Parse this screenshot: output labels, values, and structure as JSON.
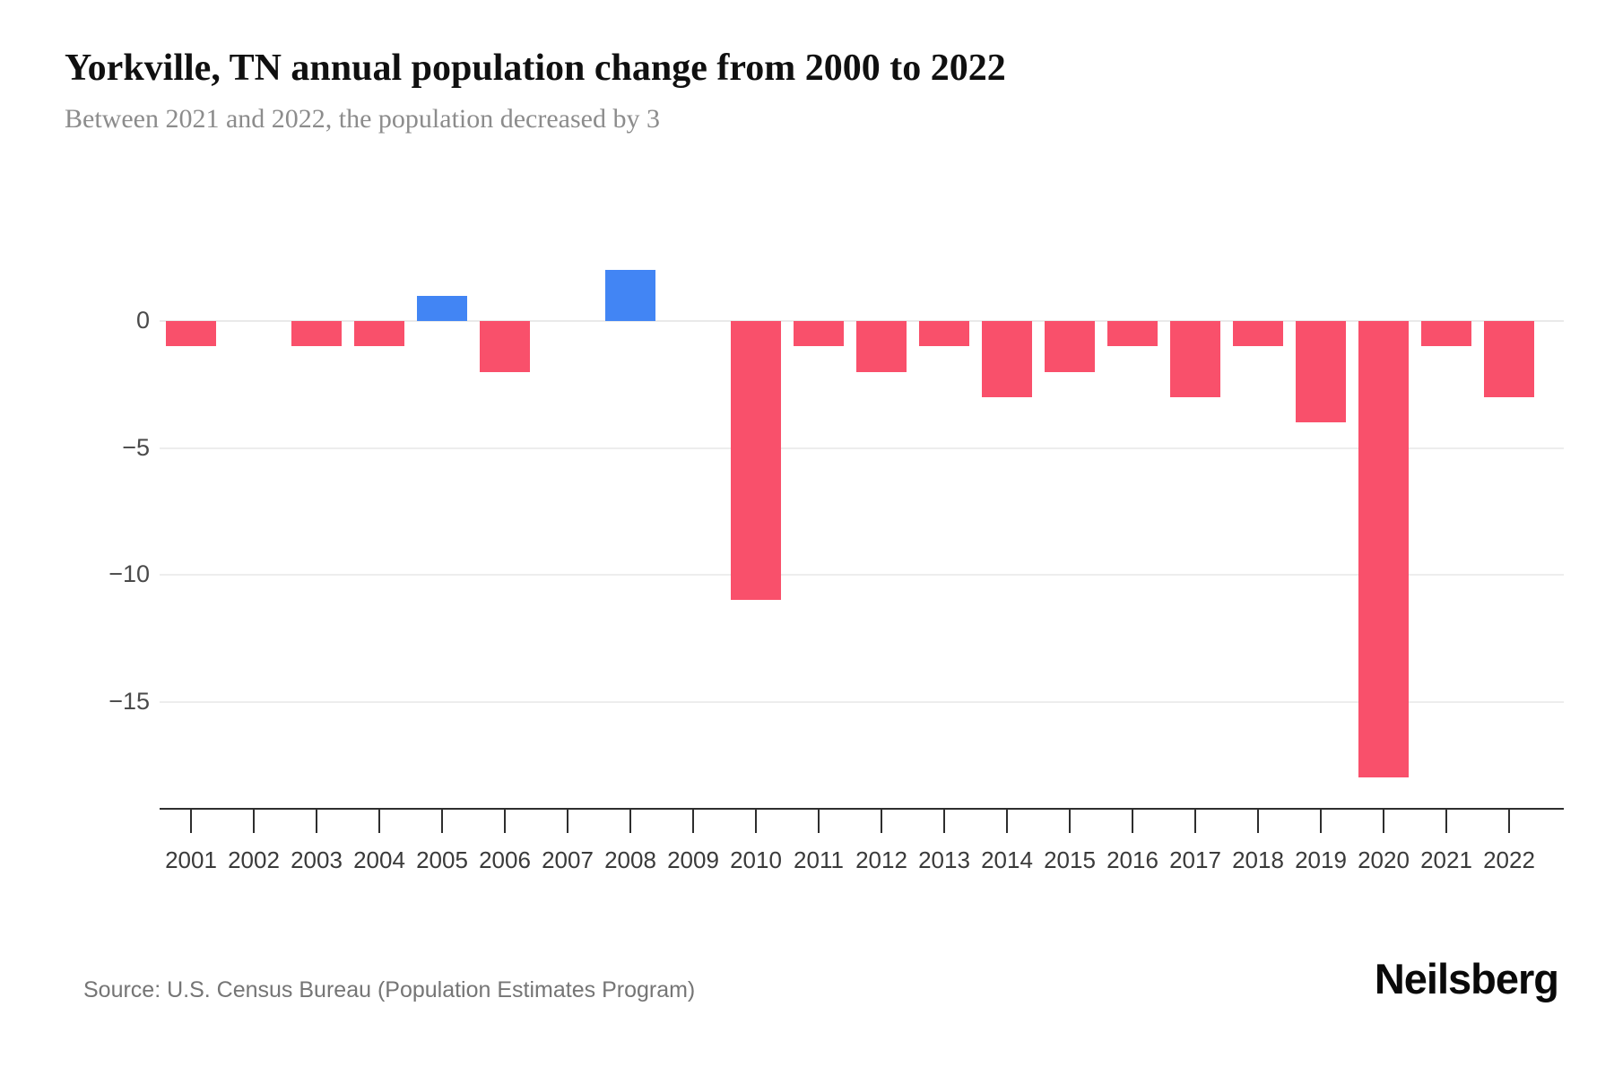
{
  "page": {
    "title": "Yorkville, TN annual population change from 2000 to 2022",
    "subtitle": "Between 2021 and 2022, the population decreased by 3",
    "source": "Source: U.S. Census Bureau (Population Estimates Program)",
    "brand": "Neilsberg"
  },
  "chart_data": {
    "type": "bar",
    "title": "Yorkville, TN annual population change from 2000 to 2022",
    "subtitle": "Between 2021 and 2022, the population decreased by 3",
    "xlabel": "",
    "ylabel": "",
    "categories": [
      "2001",
      "2002",
      "2003",
      "2004",
      "2005",
      "2006",
      "2007",
      "2008",
      "2009",
      "2010",
      "2011",
      "2012",
      "2013",
      "2014",
      "2015",
      "2016",
      "2017",
      "2018",
      "2019",
      "2020",
      "2021",
      "2022"
    ],
    "values": [
      -1,
      0,
      -1,
      -1,
      1,
      -2,
      0,
      2,
      0,
      -11,
      -1,
      -2,
      -1,
      -3,
      -2,
      -1,
      -3,
      -1,
      -4,
      -18,
      -1,
      -3
    ],
    "yticks": [
      {
        "value": 0,
        "label": "0"
      },
      {
        "value": -5,
        "label": "−5"
      },
      {
        "value": -10,
        "label": "−10"
      },
      {
        "value": -15,
        "label": "−15"
      }
    ],
    "ylim": [
      -19,
      2
    ],
    "grid": "horizontal",
    "legend_position": "none",
    "colors": {
      "negative": "#F9506B",
      "positive": "#4285F4"
    }
  }
}
